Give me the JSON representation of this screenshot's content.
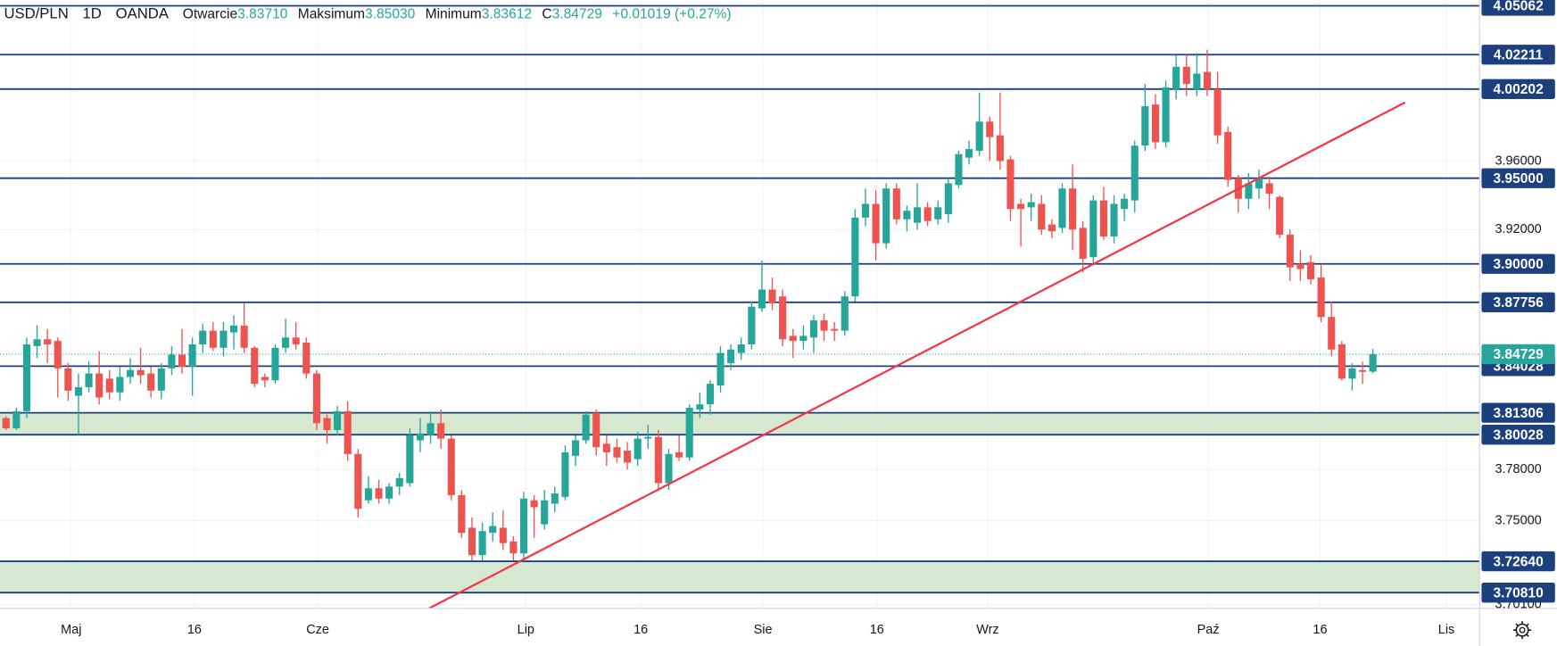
{
  "header": {
    "symbol": "USD/PLN",
    "interval": "1D",
    "source": "OANDA",
    "ohlc": [
      {
        "label": "Otwarcie",
        "value": "3.83710"
      },
      {
        "label": "Maksimum",
        "value": "3.85030"
      },
      {
        "label": "Minimum",
        "value": "3.83612"
      },
      {
        "label": "C",
        "value": "3.84729"
      }
    ],
    "change": "+0.01019 (+0.27%)"
  },
  "chart_data": {
    "type": "candlestick",
    "up_color": "#26a69a",
    "down_color": "#ef5350",
    "open": [
      3.81,
      3.804,
      3.814,
      3.852,
      3.856,
      3.855,
      3.839,
      3.823,
      3.828,
      3.836,
      3.833,
      3.825,
      3.834,
      3.838,
      3.836,
      3.826,
      3.839,
      3.847,
      3.84,
      3.853,
      3.861,
      3.851,
      3.86,
      3.864,
      3.851,
      3.834,
      3.832,
      3.851,
      3.857,
      3.854,
      3.836,
      3.81,
      3.803,
      3.814,
      3.789,
      3.762,
      3.769,
      3.763,
      3.77,
      3.772,
      3.797,
      3.8,
      3.807,
      3.798,
      3.765,
      3.746,
      3.73,
      3.743,
      3.746,
      3.738,
      3.731,
      3.762,
      3.748,
      3.76,
      3.764,
      3.788,
      3.797,
      3.813,
      3.795,
      3.793,
      3.791,
      3.786,
      3.798,
      3.799,
      3.772,
      3.79,
      3.787,
      3.815,
      3.818,
      3.829,
      3.842,
      3.848,
      3.853,
      3.874,
      3.885,
      3.881,
      3.858,
      3.855,
      3.857,
      3.867,
      3.862,
      3.861,
      3.881,
      3.927,
      3.935,
      3.912,
      3.944,
      3.926,
      3.924,
      3.933,
      3.926,
      3.929,
      3.946,
      3.962,
      3.966,
      3.983,
      3.975,
      3.961,
      3.935,
      3.933,
      3.935,
      3.923,
      3.921,
      3.944,
      3.921,
      3.904,
      3.937,
      3.916,
      3.932,
      3.937,
      3.969,
      3.993,
      3.971,
      4.002,
      4.015,
      4.002,
      4.012,
      4.002,
      3.977,
      3.95,
      3.938,
      3.944,
      3.947,
      3.939,
      3.917,
      3.9,
      3.901,
      3.892,
      3.869,
      3.853,
      3.833,
      3.838,
      3.8371
    ],
    "high": [
      3.811,
      3.816,
      3.857,
      3.864,
      3.862,
      3.857,
      3.842,
      3.836,
      3.843,
      3.849,
      3.838,
      3.84,
      3.845,
      3.851,
      3.84,
      3.842,
      3.852,
      3.862,
      3.857,
      3.865,
      3.866,
      3.866,
      3.87,
      3.877,
      3.852,
      3.836,
      3.853,
      3.868,
      3.866,
      3.857,
      3.838,
      3.812,
      3.817,
      3.82,
      3.792,
      3.776,
      3.774,
      3.772,
      3.778,
      3.804,
      3.81,
      3.814,
      3.815,
      3.8,
      3.768,
      3.752,
      3.749,
      3.755,
      3.756,
      3.741,
      3.767,
      3.765,
      3.768,
      3.77,
      3.794,
      3.8,
      3.814,
      3.815,
      3.8,
      3.798,
      3.796,
      3.802,
      3.806,
      3.803,
      3.792,
      3.8,
      3.818,
      3.825,
      3.832,
      3.852,
      3.853,
      3.857,
      3.878,
      3.902,
      3.892,
      3.885,
      3.862,
      3.864,
      3.87,
      3.871,
      3.866,
      3.884,
      3.932,
      3.944,
      3.943,
      3.947,
      3.947,
      3.934,
      3.947,
      3.936,
      3.937,
      3.95,
      3.966,
      3.972,
      4.0,
      3.986,
      4.0,
      3.963,
      3.938,
      3.941,
      3.94,
      3.926,
      3.947,
      3.958,
      3.925,
      3.94,
      3.945,
      3.94,
      3.941,
      3.972,
      4.005,
      3.999,
      4.007,
      4.022,
      4.022,
      4.023,
      4.025,
      4.012,
      3.98,
      3.952,
      3.953,
      3.955,
      3.951,
      3.94,
      3.92,
      3.908,
      3.905,
      3.9,
      3.878,
      3.855,
      3.842,
      3.843,
      3.8503
    ],
    "low": [
      3.803,
      3.803,
      3.81,
      3.845,
      3.842,
      3.822,
      3.82,
      3.8,
      3.825,
      3.818,
      3.821,
      3.82,
      3.83,
      3.83,
      3.822,
      3.821,
      3.835,
      3.836,
      3.823,
      3.848,
      3.849,
      3.846,
      3.85,
      3.848,
      3.828,
      3.828,
      3.83,
      3.848,
      3.85,
      3.833,
      3.803,
      3.795,
      3.8,
      3.785,
      3.752,
      3.76,
      3.76,
      3.76,
      3.765,
      3.77,
      3.79,
      3.795,
      3.792,
      3.762,
      3.74,
      3.727,
      3.727,
      3.738,
      3.733,
      3.727,
      3.727,
      3.74,
      3.745,
      3.755,
      3.762,
      3.782,
      3.795,
      3.788,
      3.782,
      3.784,
      3.78,
      3.782,
      3.792,
      3.768,
      3.768,
      3.785,
      3.785,
      3.81,
      3.812,
      3.825,
      3.838,
      3.844,
      3.85,
      3.872,
      3.873,
      3.852,
      3.845,
      3.85,
      3.848,
      3.855,
      3.855,
      3.858,
      3.878,
      3.922,
      3.902,
      3.909,
      3.923,
      3.919,
      3.92,
      3.922,
      3.923,
      3.924,
      3.944,
      3.958,
      3.963,
      3.96,
      3.955,
      3.925,
      3.91,
      3.925,
      3.917,
      3.915,
      3.918,
      3.908,
      3.895,
      3.9,
      3.914,
      3.912,
      3.925,
      3.93,
      3.966,
      3.967,
      3.968,
      3.996,
      3.998,
      3.998,
      3.998,
      3.97,
      3.945,
      3.93,
      3.932,
      3.938,
      3.932,
      3.915,
      3.89,
      3.89,
      3.888,
      3.866,
      3.846,
      3.832,
      3.826,
      3.83,
      3.83612
    ],
    "close": [
      3.804,
      3.814,
      3.853,
      3.856,
      3.853,
      3.839,
      3.826,
      3.828,
      3.836,
      3.822,
      3.825,
      3.834,
      3.838,
      3.835,
      3.826,
      3.839,
      3.847,
      3.84,
      3.853,
      3.861,
      3.851,
      3.861,
      3.864,
      3.851,
      3.83,
      3.832,
      3.851,
      3.857,
      3.853,
      3.836,
      3.807,
      3.803,
      3.814,
      3.789,
      3.757,
      3.769,
      3.763,
      3.77,
      3.775,
      3.8,
      3.801,
      3.807,
      3.798,
      3.765,
      3.743,
      3.73,
      3.744,
      3.747,
      3.737,
      3.731,
      3.763,
      3.758,
      3.762,
      3.766,
      3.79,
      3.797,
      3.812,
      3.793,
      3.79,
      3.787,
      3.784,
      3.798,
      3.799,
      3.772,
      3.789,
      3.787,
      3.816,
      3.818,
      3.83,
      3.848,
      3.85,
      3.853,
      3.875,
      3.885,
      3.877,
      3.856,
      3.855,
      3.858,
      3.867,
      3.861,
      3.861,
      3.881,
      3.927,
      3.935,
      3.912,
      3.944,
      3.926,
      3.931,
      3.933,
      3.925,
      3.933,
      3.947,
      3.964,
      3.967,
      3.983,
      3.974,
      3.96,
      3.932,
      3.932,
      3.936,
      3.92,
      3.919,
      3.944,
      3.92,
      3.903,
      3.937,
      3.916,
      3.935,
      3.938,
      3.969,
      3.992,
      3.971,
      4.003,
      4.015,
      4.005,
      4.011,
      4.002,
      3.975,
      3.949,
      3.938,
      3.947,
      3.95,
      3.941,
      3.917,
      3.898,
      3.897,
      3.891,
      3.869,
      3.85,
      3.833,
      3.839,
      3.837,
      3.84729
    ],
    "xlim": [
      -0.58,
      142.3
    ],
    "xticks": [
      {
        "value": 6.3,
        "label": "Maj"
      },
      {
        "value": 18.2,
        "label": "16"
      },
      {
        "value": 30.1,
        "label": "Cze"
      },
      {
        "value": 50.2,
        "label": "Lip"
      },
      {
        "value": 61.3,
        "label": "16"
      },
      {
        "value": 73.1,
        "label": "Sie"
      },
      {
        "value": 84.1,
        "label": "16"
      },
      {
        "value": 94.8,
        "label": "Wrz"
      },
      {
        "value": 116.1,
        "label": "Paź"
      },
      {
        "value": 126.9,
        "label": "16"
      },
      {
        "value": 139.1,
        "label": "Lis"
      }
    ],
    "ylim": [
      3.699,
      4.054
    ],
    "yticks": [
      {
        "value": 3.96,
        "label": "3.96000"
      },
      {
        "value": 3.92,
        "label": "3.92000"
      },
      {
        "value": 3.78,
        "label": "3.78000"
      },
      {
        "value": 3.75,
        "label": "3.75000"
      },
      {
        "value": 3.701,
        "label": "3.70100"
      }
    ],
    "grid": true,
    "level_color": "#1c3f7d",
    "levels": [
      {
        "value": 4.05062,
        "label": "4.05062"
      },
      {
        "value": 4.02211,
        "label": "4.02211"
      },
      {
        "value": 4.00202,
        "label": "4.00202"
      },
      {
        "value": 3.95,
        "label": "3.95000"
      },
      {
        "value": 3.9,
        "label": "3.90000"
      },
      {
        "value": 3.87756,
        "label": "3.87756"
      },
      {
        "value": 3.84028,
        "label": "3.84028"
      },
      {
        "value": 3.81306,
        "label": "3.81306"
      },
      {
        "value": 3.80028,
        "label": "3.80028"
      },
      {
        "value": 3.7264,
        "label": "3.72640"
      },
      {
        "value": 3.7081,
        "label": "3.70810"
      }
    ],
    "zone_color": "#d6e9d0",
    "zones": [
      {
        "from": 3.80028,
        "to": 3.81306
      },
      {
        "from": 3.7081,
        "to": 3.7264
      }
    ],
    "last_price": {
      "value": 3.84729,
      "label": "3.84729",
      "color": "#26a69a"
    },
    "trendline": {
      "x": [
        39.7,
        135.1
      ],
      "y": [
        3.6953,
        3.9942
      ],
      "color": "#f23645"
    }
  }
}
